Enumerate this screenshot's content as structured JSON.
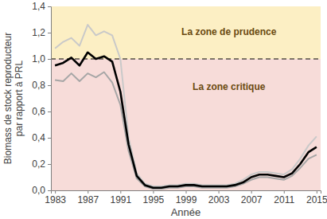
{
  "chart_data": {
    "type": "line",
    "ylabel": [
      "Biomass de stock reproducteur",
      "par rapport à PRL"
    ],
    "xlabel": "Année",
    "x": [
      1983,
      1984,
      1985,
      1986,
      1987,
      1988,
      1989,
      1990,
      1991,
      1992,
      1993,
      1994,
      1995,
      1996,
      1997,
      1998,
      1999,
      2000,
      2001,
      2002,
      2003,
      2004,
      2005,
      2006,
      2007,
      2008,
      2009,
      2010,
      2011,
      2012,
      2013,
      2014,
      2015
    ],
    "xlim": [
      1982.5,
      2015.5
    ],
    "xticks": [
      1983,
      1987,
      1991,
      1995,
      1999,
      2003,
      2007,
      2011,
      2015
    ],
    "ylim": [
      0,
      1.4
    ],
    "yticks": [
      {
        "value": 0,
        "label": "0,0"
      },
      {
        "value": 0.2,
        "label": "0,2"
      },
      {
        "value": 0.4,
        "label": "0,4"
      },
      {
        "value": 0.6,
        "label": "0,6"
      },
      {
        "value": 0.8,
        "label": "0,8"
      },
      {
        "value": 1,
        "label": "1,0"
      },
      {
        "value": 1.2,
        "label": "1,2"
      },
      {
        "value": 1.4,
        "label": "1,4"
      }
    ],
    "series": [
      {
        "color": "#c9c9c9",
        "values": [
          1.08,
          1.13,
          1.16,
          1.1,
          1.26,
          1.18,
          1.21,
          1.18,
          1.0,
          0.4,
          0.13,
          0.05,
          0.03,
          0.03,
          0.04,
          0.04,
          0.05,
          0.05,
          0.04,
          0.04,
          0.04,
          0.04,
          0.05,
          0.08,
          0.12,
          0.14,
          0.14,
          0.13,
          0.12,
          0.16,
          0.24,
          0.34,
          0.41
        ]
      },
      {
        "color": "#a6a6a6",
        "values": [
          0.84,
          0.83,
          0.89,
          0.83,
          0.89,
          0.86,
          0.9,
          0.82,
          0.65,
          0.3,
          0.09,
          0.03,
          0.01,
          0.01,
          0.02,
          0.02,
          0.03,
          0.03,
          0.02,
          0.02,
          0.02,
          0.02,
          0.03,
          0.05,
          0.08,
          0.1,
          0.1,
          0.09,
          0.08,
          0.11,
          0.17,
          0.24,
          0.27
        ]
      },
      {
        "color": "#000000",
        "values": [
          0.95,
          0.97,
          1.01,
          0.95,
          1.05,
          1.0,
          1.02,
          0.98,
          0.75,
          0.35,
          0.11,
          0.04,
          0.02,
          0.02,
          0.03,
          0.03,
          0.04,
          0.04,
          0.03,
          0.03,
          0.03,
          0.03,
          0.04,
          0.06,
          0.1,
          0.12,
          0.12,
          0.11,
          0.1,
          0.13,
          0.2,
          0.29,
          0.33
        ]
      }
    ],
    "zones": [
      {
        "label": "La zone de prudence",
        "from": 1,
        "to": 1.4,
        "color": "#fcefc4"
      },
      {
        "label": "La zone critique",
        "from": 0,
        "to": 1,
        "color": "#f7dcd9"
      }
    ],
    "reference_line": {
      "value": 1,
      "color": "#000000",
      "line_style": "dashed"
    }
  }
}
